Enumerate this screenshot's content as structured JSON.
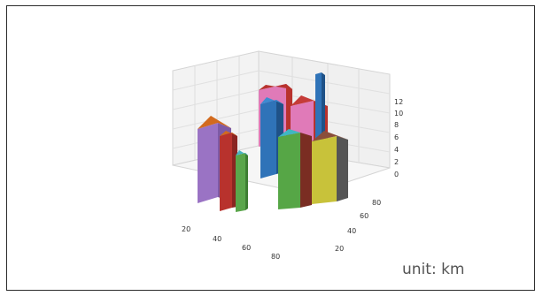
{
  "chart_data": {
    "type": "bar3d",
    "z_ticks": [
      "12",
      "10",
      "8",
      "6",
      "4",
      "2",
      "0"
    ],
    "x_ticks": [
      "20",
      "40",
      "60",
      "80"
    ],
    "y_ticks": [
      "20",
      "40",
      "60",
      "80"
    ],
    "zlim": [
      0,
      14
    ],
    "grid": true,
    "bars": [
      {
        "x": 30,
        "y": 75,
        "height": 8,
        "face": "#d9d9d9"
      },
      {
        "x": 40,
        "y": 70,
        "height": 10,
        "face": "#d9d9d9"
      },
      {
        "x": 50,
        "y": 70,
        "height": 6,
        "face": "#d9d9d9"
      },
      {
        "x": 60,
        "y": 60,
        "height": 12,
        "face": "#d9d9d9"
      }
    ],
    "annotation": "unit: km"
  }
}
